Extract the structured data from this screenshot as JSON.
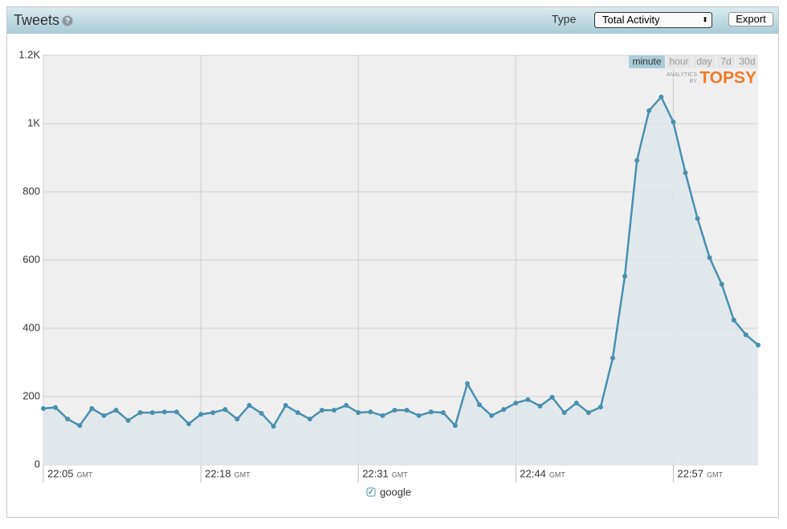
{
  "header": {
    "title": "Tweets",
    "type_label": "Type",
    "type_select": "Total Activity",
    "export_button": "Export"
  },
  "range_buttons": [
    "minute",
    "hour",
    "day",
    "7d",
    "30d"
  ],
  "active_range": "minute",
  "branding": {
    "line1": "ANALYTICS",
    "line2": "BY",
    "name": "TOPSY"
  },
  "chart_data": {
    "type": "line",
    "x": [
      "22:05",
      "22:06",
      "22:07",
      "22:08",
      "22:09",
      "22:10",
      "22:11",
      "22:12",
      "22:13",
      "22:14",
      "22:15",
      "22:16",
      "22:17",
      "22:18",
      "22:19",
      "22:20",
      "22:21",
      "22:22",
      "22:23",
      "22:24",
      "22:25",
      "22:26",
      "22:27",
      "22:28",
      "22:29",
      "22:30",
      "22:31",
      "22:32",
      "22:33",
      "22:34",
      "22:35",
      "22:36",
      "22:37",
      "22:38",
      "22:39",
      "22:40",
      "22:41",
      "22:42",
      "22:43",
      "22:44",
      "22:45",
      "22:46",
      "22:47",
      "22:48",
      "22:49",
      "22:50",
      "22:51",
      "22:52",
      "22:53",
      "22:54",
      "22:55",
      "22:56",
      "22:57",
      "22:58",
      "22:59",
      "23:00",
      "23:01",
      "23:02",
      "23:03",
      "23:04"
    ],
    "series": [
      {
        "name": "google",
        "color": "#4a8fb0",
        "values": [
          165,
          168,
          134,
          115,
          165,
          144,
          160,
          130,
          153,
          153,
          155,
          155,
          120,
          148,
          153,
          162,
          134,
          174,
          151,
          113,
          174,
          153,
          134,
          160,
          160,
          174,
          153,
          155,
          144,
          160,
          160,
          144,
          155,
          153,
          115,
          238,
          176,
          144,
          162,
          181,
          191,
          172,
          198,
          153,
          181,
          153,
          169,
          313,
          553,
          892,
          1038,
          1078,
          1005,
          856,
          722,
          607,
          529,
          424,
          381,
          351
        ]
      }
    ],
    "ylim": [
      0,
      1200
    ],
    "yticks": [
      0,
      200,
      400,
      600,
      800,
      {
        "value": 1000,
        "label": "1K"
      },
      {
        "value": 1200,
        "label": "1.2K"
      }
    ],
    "xlim": [
      "22:05",
      "23:04"
    ],
    "xticks": [
      "22:05",
      "22:18",
      "22:31",
      "22:44",
      "22:57"
    ],
    "x_unit": "GMT",
    "grid": true,
    "area_fill": "#dde6eb"
  }
}
